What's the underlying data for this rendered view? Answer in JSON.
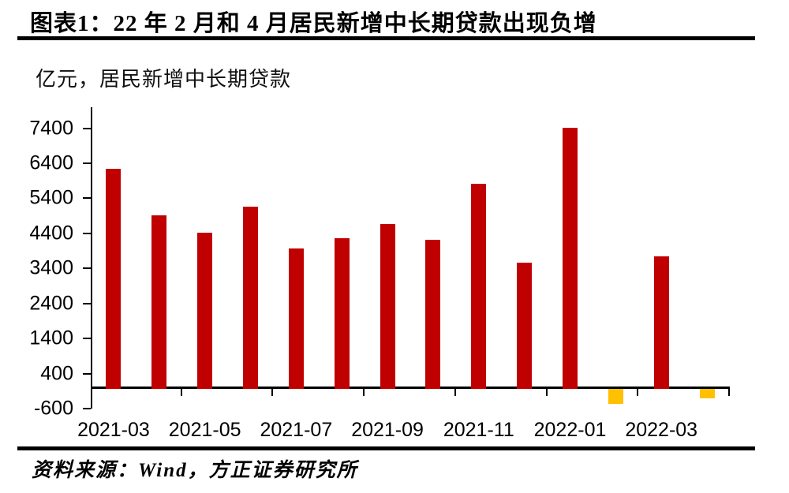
{
  "page": {
    "title": "图表1：22 年 2 月和 4 月居民新增中长期贷款出现负增",
    "subtitle": "亿元，居民新增中长期贷款",
    "source": "资料来源：Wind，方正证券研究所"
  },
  "colors": {
    "positive_bar": "#C00000",
    "negative_bar": "#FFC000",
    "axis": "#000000",
    "text": "#000000",
    "background": "#FFFFFF"
  },
  "chart_data": {
    "type": "bar",
    "title": "亿元，居民新增中长期贷款",
    "xlabel": "",
    "ylabel": "亿元",
    "categories": [
      "2021-03",
      "2021-04",
      "2021-05",
      "2021-06",
      "2021-07",
      "2021-08",
      "2021-09",
      "2021-10",
      "2021-11",
      "2021-12",
      "2022-01",
      "2022-02",
      "2022-03",
      "2022-04"
    ],
    "values": [
      6239,
      4918,
      4426,
      5156,
      3974,
      4259,
      4667,
      4221,
      5821,
      3558,
      7424,
      -459,
      3735,
      -314
    ],
    "x_tick_labels": [
      "2021-03",
      "2021-05",
      "2021-07",
      "2021-09",
      "2021-11",
      "2022-01",
      "2022-03"
    ],
    "y_ticks": [
      7400,
      6400,
      5400,
      4400,
      3400,
      2400,
      1400,
      400,
      -600
    ],
    "ylim": [
      -600,
      8000
    ],
    "grid": false,
    "legend": false,
    "bar_color_positive": "#C00000",
    "bar_color_negative": "#FFC000"
  }
}
